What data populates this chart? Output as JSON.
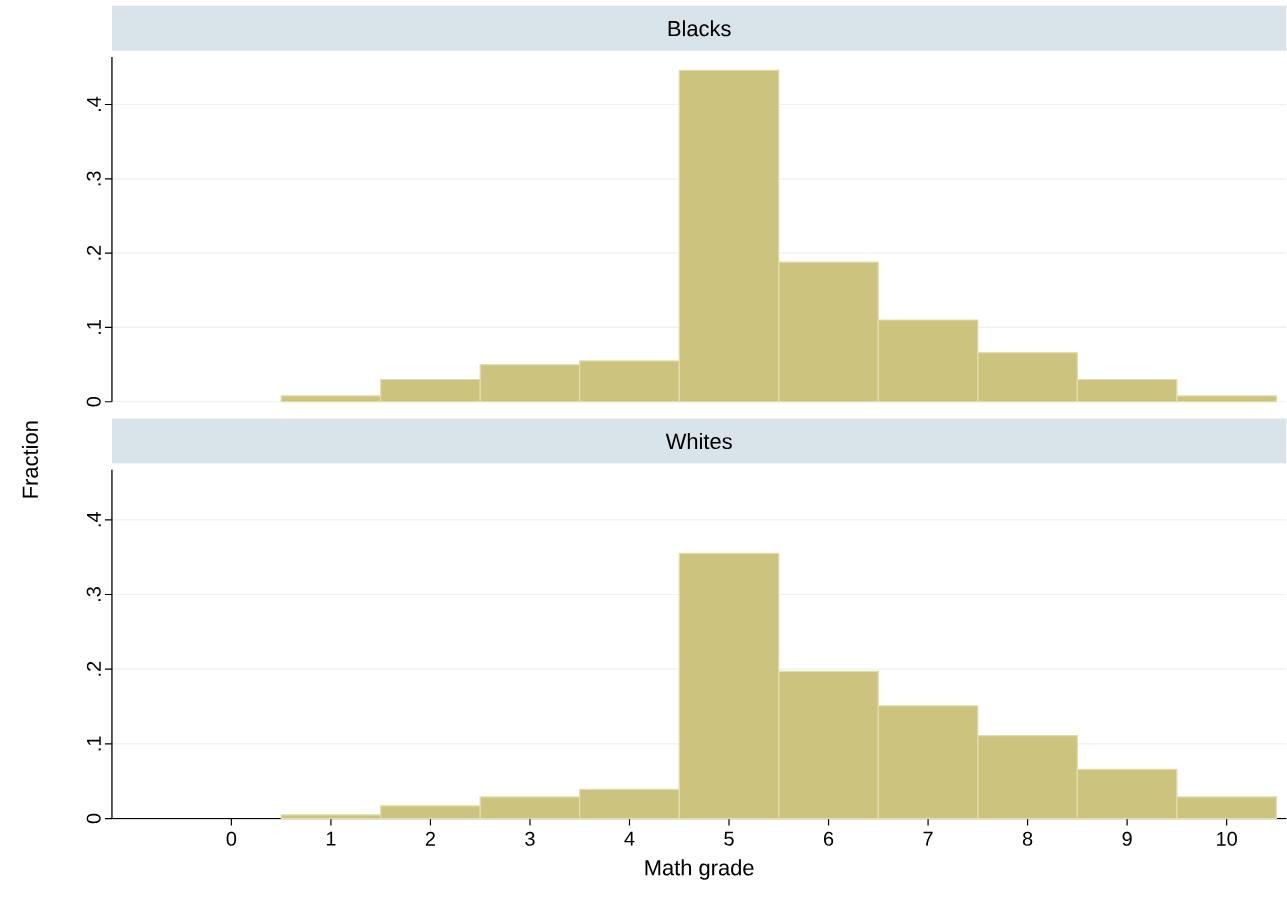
{
  "chart_data": [
    {
      "type": "histogram",
      "title": "Blacks",
      "ylabel": "Fraction",
      "bins": [
        0.5,
        1.5,
        2.5,
        3.5,
        4.5,
        5.5,
        6.5,
        7.5,
        8.5,
        9.5,
        10.5
      ],
      "values": [
        0.008,
        0.03,
        0.05,
        0.055,
        0.446,
        0.188,
        0.11,
        0.066,
        0.03,
        0.008
      ],
      "color": "#ccc47e",
      "xlim": [
        -1.2,
        10.6
      ],
      "ylim": [
        0,
        0.464
      ],
      "xticks": [
        0,
        1,
        2,
        3,
        4,
        5,
        6,
        7,
        8,
        9,
        10
      ],
      "yticks": [
        0,
        {
          "value": 0.1,
          "label": ".1"
        },
        {
          "value": 0.2,
          "label": ".2"
        },
        {
          "value": 0.3,
          "label": ".3"
        },
        {
          "value": 0.4,
          "label": ".4"
        }
      ],
      "grid": "y",
      "tick_labels": "y"
    },
    {
      "type": "histogram",
      "title": "Whites",
      "xlabel": "Math grade",
      "bins": [
        0.5,
        1.5,
        2.5,
        3.5,
        4.5,
        5.5,
        6.5,
        7.5,
        8.5,
        9.5,
        10.5
      ],
      "values": [
        0.005,
        0.017,
        0.029,
        0.039,
        0.355,
        0.197,
        0.151,
        0.111,
        0.066,
        0.029
      ],
      "color": "#ccc47e",
      "xlim": [
        -1.2,
        10.6
      ],
      "ylim": [
        0,
        0.467
      ],
      "xticks": [
        0,
        1,
        2,
        3,
        4,
        5,
        6,
        7,
        8,
        9,
        10
      ],
      "yticks": [
        0,
        {
          "value": 0.1,
          "label": ".1"
        },
        {
          "value": 0.2,
          "label": ".2"
        },
        {
          "value": 0.3,
          "label": ".3"
        },
        {
          "value": 0.4,
          "label": ".4"
        }
      ],
      "grid": "y"
    }
  ]
}
